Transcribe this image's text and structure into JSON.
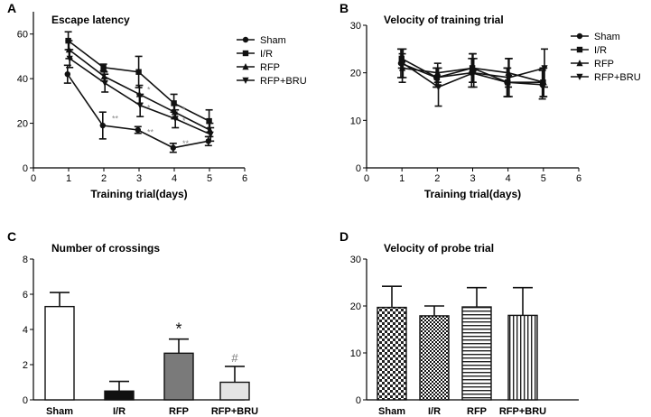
{
  "chart_data": [
    {
      "panel": "A",
      "type": "line",
      "title": "Escape latency",
      "xlabel": "Training trial(days)",
      "ylabel": "",
      "xlim": [
        0,
        6
      ],
      "ylim": [
        0,
        70
      ],
      "xticks": [
        "0",
        "1",
        "2",
        "3",
        "4",
        "5",
        "6"
      ],
      "yticks": [
        "0",
        "20",
        "40",
        "60"
      ],
      "x": [
        1,
        2,
        3,
        4,
        5
      ],
      "series": [
        {
          "name": "Sham",
          "marker": "circle",
          "values": [
            42,
            19,
            17,
            9,
            12
          ],
          "errors": [
            4,
            6,
            1.5,
            2,
            2
          ]
        },
        {
          "name": "I/R",
          "marker": "square",
          "values": [
            57,
            45,
            43,
            29,
            21
          ],
          "errors": [
            4,
            1.5,
            7,
            4,
            5
          ]
        },
        {
          "name": "RFP",
          "marker": "triangle-up",
          "values": [
            53,
            41,
            33,
            25,
            17
          ],
          "errors": [
            4,
            2,
            4,
            3,
            3
          ]
        },
        {
          "name": "RFP+BRU",
          "marker": "triangle-down",
          "values": [
            49,
            38,
            28,
            22,
            15
          ],
          "errors": [
            4,
            4,
            5,
            4,
            3
          ]
        }
      ],
      "annotations": [
        {
          "x": 2,
          "y": 22,
          "text": "**"
        },
        {
          "x": 3,
          "y": 35,
          "text": "*"
        },
        {
          "x": 3,
          "y": 27,
          "text": "*"
        },
        {
          "x": 3,
          "y": 16,
          "text": "**"
        },
        {
          "x": 4,
          "y": 26,
          "text": "*"
        },
        {
          "x": 4,
          "y": 21,
          "text": "*"
        },
        {
          "x": 4,
          "y": 11,
          "text": "**"
        }
      ],
      "legend": "top-right"
    },
    {
      "panel": "B",
      "type": "line",
      "title": "Velocity of training trial",
      "xlabel": "Training trial(days)",
      "ylabel": "",
      "xlim": [
        0,
        6
      ],
      "ylim": [
        0,
        30
      ],
      "xticks": [
        "0",
        "1",
        "2",
        "3",
        "4",
        "5",
        "6"
      ],
      "yticks": [
        "0",
        "10",
        "20",
        "30"
      ],
      "x": [
        1,
        2,
        3,
        4,
        5
      ],
      "series": [
        {
          "name": "Sham",
          "marker": "circle",
          "values": [
            22,
            19,
            20,
            18,
            17.5
          ],
          "errors": [
            3,
            2,
            3,
            3,
            3
          ]
        },
        {
          "name": "I/R",
          "marker": "square",
          "values": [
            23,
            19,
            21,
            18,
            18
          ],
          "errors": [
            2,
            2,
            3,
            3,
            3
          ]
        },
        {
          "name": "RFP",
          "marker": "triangle-up",
          "values": [
            21,
            20,
            21,
            20,
            18
          ],
          "errors": [
            3,
            2,
            3,
            3,
            3
          ]
        },
        {
          "name": "RFP+BRU",
          "marker": "triangle-down",
          "values": [
            22,
            17,
            20,
            19,
            21
          ],
          "errors": [
            3,
            4,
            3,
            4,
            4
          ]
        }
      ],
      "legend": "top-right"
    },
    {
      "panel": "C",
      "type": "bar",
      "title": "Number of crossings",
      "xlabel": "",
      "ylabel": "",
      "ylim": [
        0,
        8
      ],
      "yticks": [
        "0",
        "2",
        "4",
        "6",
        "8"
      ],
      "categories": [
        "Sham",
        "I/R",
        "RFP",
        "RFP+BRU"
      ],
      "values": [
        5.3,
        0.5,
        2.65,
        1.0
      ],
      "errors": [
        0.8,
        0.55,
        0.8,
        0.9
      ],
      "fills": [
        "#ffffff",
        "#111111",
        "#7a7a7a",
        "#e4e4e4"
      ],
      "annotations": [
        {
          "category": "RFP",
          "text": "*"
        },
        {
          "category": "RFP+BRU",
          "text": "#"
        }
      ]
    },
    {
      "panel": "D",
      "type": "bar",
      "title": "Velocity of probe trial",
      "xlabel": "",
      "ylabel": "",
      "ylim": [
        0,
        30
      ],
      "yticks": [
        "0",
        "10",
        "20",
        "30"
      ],
      "categories": [
        "Sham",
        "I/R",
        "RFP",
        "RFP+BRU"
      ],
      "values": [
        19.7,
        17.9,
        19.8,
        18.0
      ],
      "errors": [
        4.5,
        2.1,
        4.1,
        5.9
      ],
      "patterns": [
        "checker",
        "dots",
        "hlines",
        "vlines"
      ]
    }
  ]
}
